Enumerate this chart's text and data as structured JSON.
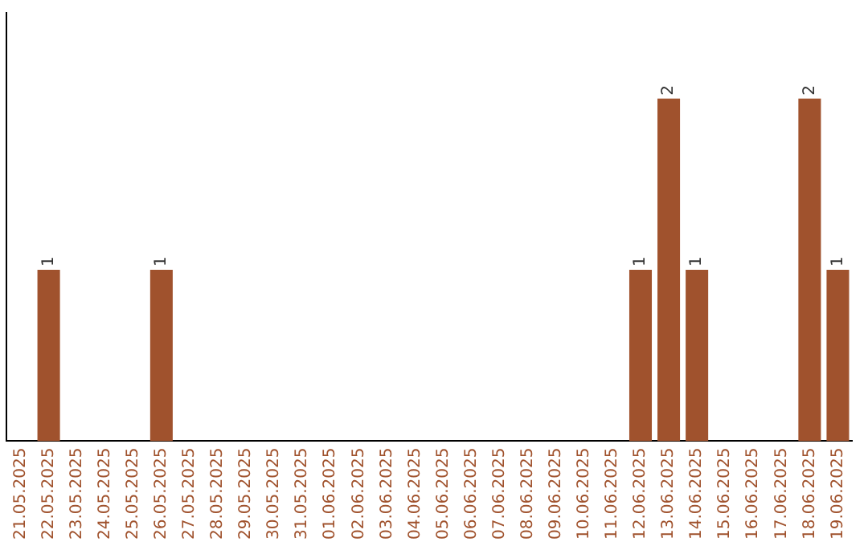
{
  "chart_data": {
    "type": "bar",
    "categories": [
      "21.05.2025",
      "22.05.2025",
      "23.05.2025",
      "24.05.2025",
      "25.05.2025",
      "26.05.2025",
      "27.05.2025",
      "28.05.2025",
      "29.05.2025",
      "30.05.2025",
      "31.05.2025",
      "01.06.2025",
      "02.06.2025",
      "03.06.2025",
      "04.06.2025",
      "05.06.2025",
      "06.06.2025",
      "07.06.2025",
      "08.06.2025",
      "09.06.2025",
      "10.06.2025",
      "11.06.2025",
      "12.06.2025",
      "13.06.2025",
      "14.06.2025",
      "15.06.2025",
      "16.06.2025",
      "17.06.2025",
      "18.06.2025",
      "19.06.2025"
    ],
    "values": [
      0,
      1,
      0,
      0,
      0,
      1,
      0,
      0,
      0,
      0,
      0,
      0,
      0,
      0,
      0,
      0,
      0,
      0,
      0,
      0,
      0,
      0,
      1,
      2,
      1,
      0,
      0,
      0,
      2,
      1
    ],
    "value_labels": [
      null,
      "1",
      null,
      null,
      null,
      "1",
      null,
      null,
      null,
      null,
      null,
      null,
      null,
      null,
      null,
      null,
      null,
      null,
      null,
      null,
      null,
      null,
      "1",
      "2",
      "1",
      null,
      null,
      null,
      "2",
      "1"
    ],
    "color": "#a0522d",
    "tick_labels": "x",
    "grid": false,
    "legend": false
  }
}
